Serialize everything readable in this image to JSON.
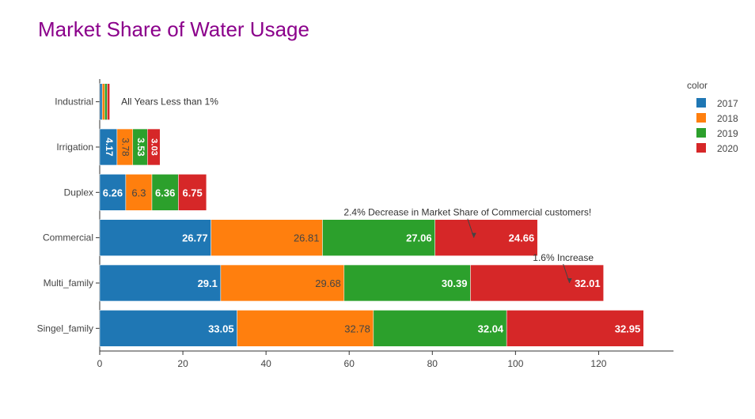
{
  "chart_data": {
    "type": "bar",
    "orientation": "horizontal",
    "barmode": "stack",
    "title": "Market Share of Water Usage",
    "categories": [
      "Singel_family",
      "Multi_family",
      "Commercial",
      "Duplex",
      "Irrigation",
      "Industrial"
    ],
    "series": [
      {
        "name": "2017",
        "color": "#1f77b4",
        "values": [
          33.05,
          29.1,
          26.77,
          6.26,
          4.17,
          0.6
        ]
      },
      {
        "name": "2018",
        "color": "#ff7f0e",
        "values": [
          32.78,
          29.68,
          26.81,
          6.3,
          3.78,
          0.6
        ]
      },
      {
        "name": "2019",
        "color": "#2ca02c",
        "values": [
          32.04,
          30.39,
          27.06,
          6.36,
          3.53,
          0.6
        ]
      },
      {
        "name": "2020",
        "color": "#d62728",
        "values": [
          32.95,
          32.01,
          24.66,
          6.75,
          3.03,
          0.6
        ]
      }
    ],
    "data_labels": {
      "Singel_family": [
        "33.05",
        "32.78",
        "32.04",
        "32.95"
      ],
      "Multi_family": [
        "29.1",
        "29.68",
        "30.39",
        "32.01"
      ],
      "Commercial": [
        "26.77",
        "26.81",
        "27.06",
        "24.66"
      ],
      "Duplex": [
        "6.26",
        "6.3",
        "6.36",
        "6.75"
      ],
      "Irrigation": [
        "4.17",
        "3.78",
        "3.53",
        "3.03"
      ],
      "Industrial": [
        "",
        "",
        "",
        ""
      ]
    },
    "xlim": [
      0,
      138
    ],
    "xticks": [
      0,
      20,
      40,
      60,
      80,
      100,
      120
    ],
    "xlabel": "",
    "ylabel": "",
    "grid": false,
    "legend": {
      "title": "color",
      "position": "right"
    },
    "annotations": [
      {
        "text": "All Years Less than 1%",
        "category": "Industrial",
        "x": 2.5,
        "arrow": false
      },
      {
        "text": "2.4% Decrease in Market Share of Commercial customers!",
        "category": "Commercial",
        "x": 90,
        "arrow": true
      },
      {
        "text": "1.6% Increase",
        "category": "Multi_family",
        "x": 113,
        "arrow": true
      }
    ]
  }
}
